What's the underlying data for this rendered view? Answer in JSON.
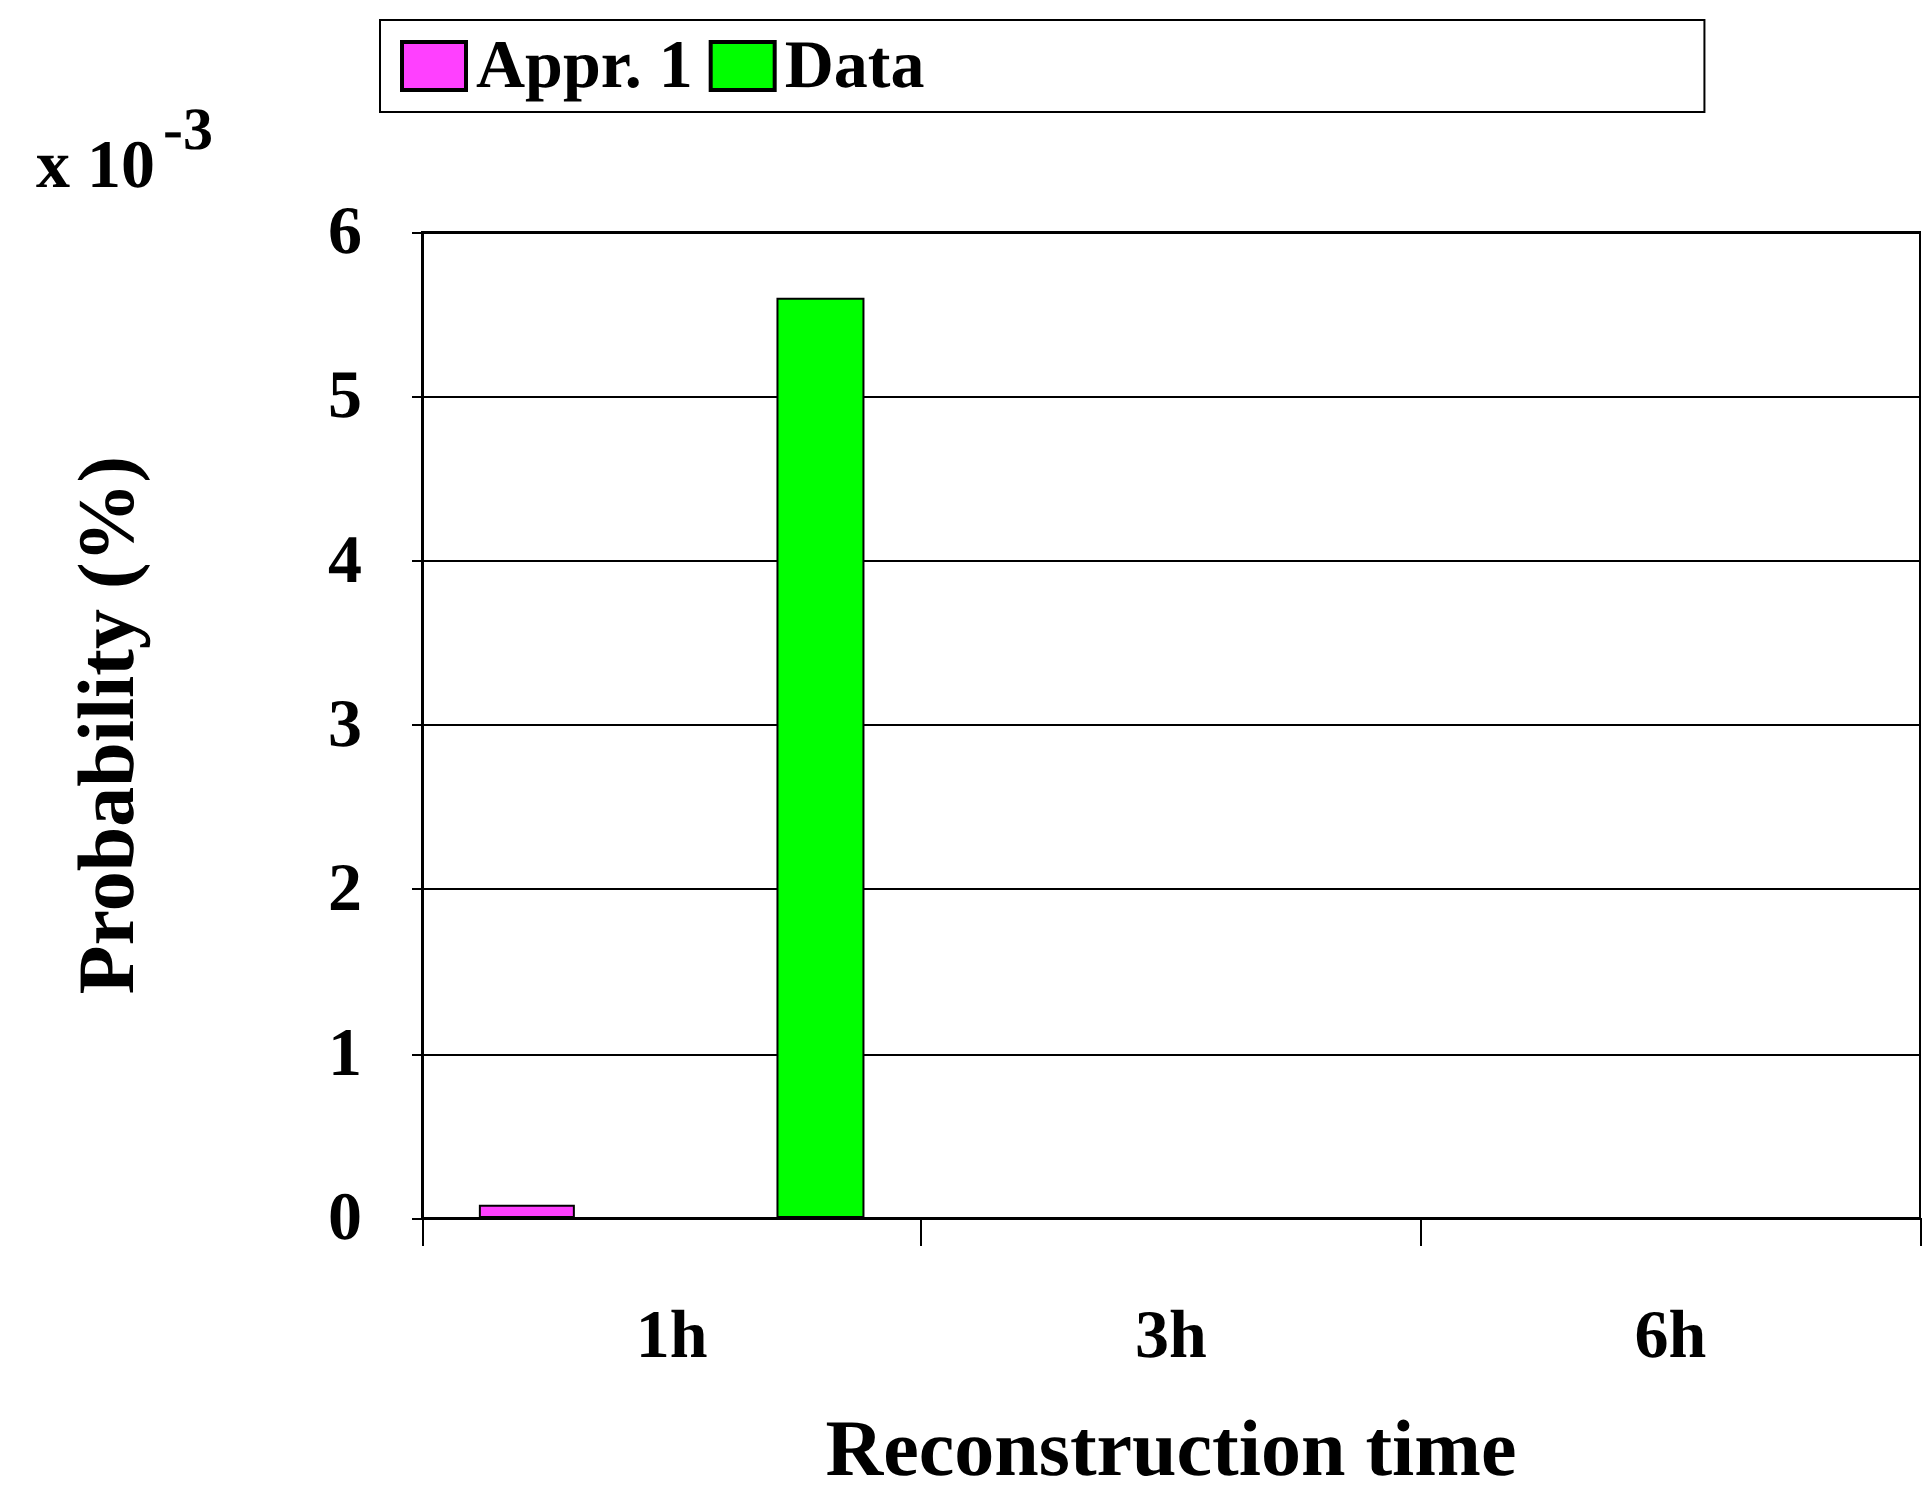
{
  "chart_data": {
    "type": "bar",
    "xlabel": "Reconstruction time",
    "ylabel": "Probability (%)",
    "categories": [
      "1h",
      "3h",
      "6h"
    ],
    "series": [
      {
        "name": "Appr. 1",
        "color": "#ff40ff",
        "values": [
          0.08,
          null,
          null
        ]
      },
      {
        "name": "Data",
        "color": "#00ff00",
        "values": [
          5.6,
          null,
          null
        ]
      }
    ],
    "ylim": [
      0,
      6
    ],
    "yticks": [
      0,
      1,
      2,
      3,
      4,
      5,
      6
    ],
    "grid": "y",
    "legend": "top",
    "annotations": [
      "x 10$^{-3}$"
    ]
  }
}
